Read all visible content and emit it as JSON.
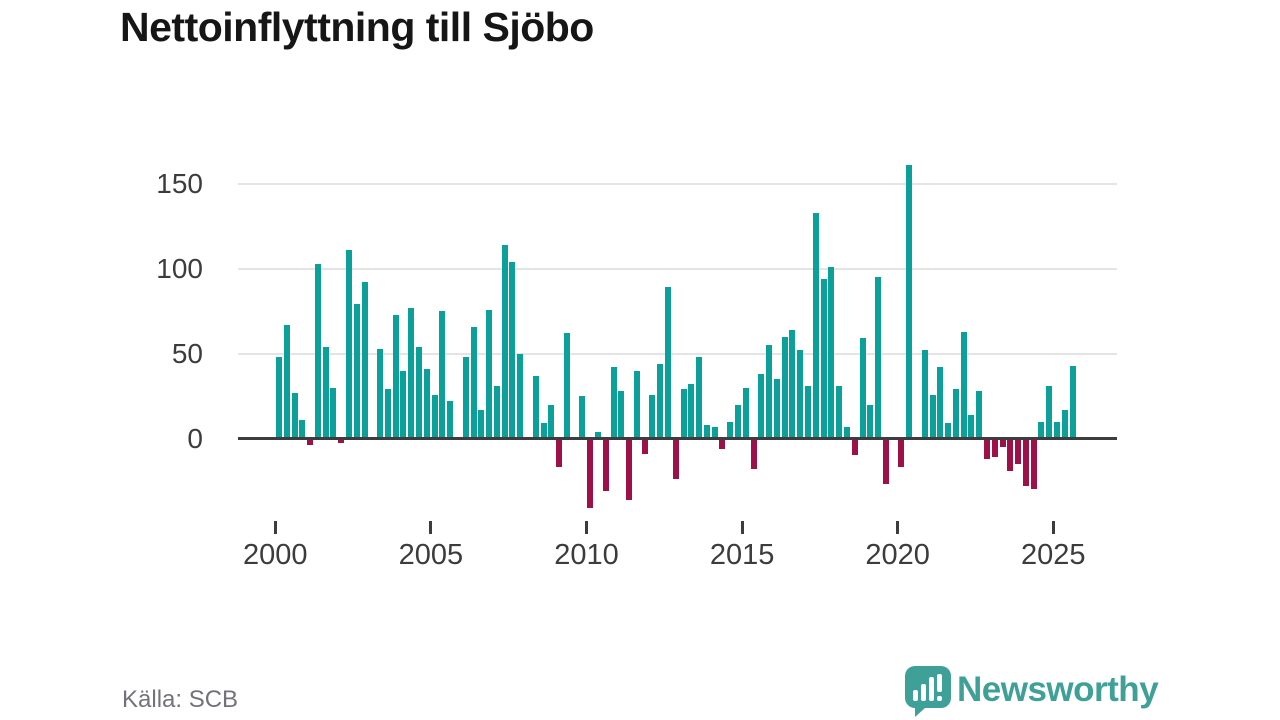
{
  "title": "Nettoinflyttning till Sjöbo",
  "source": "Källa: SCB",
  "branding": {
    "name": "Newsworthy",
    "icon": "bar-chart-speech-bubble-icon",
    "color": "#3fa098"
  },
  "colors": {
    "bar_positive": "#0ba09a",
    "bar_negative": "#9e1148",
    "gridline": "#e4e4e4",
    "axis_line": "#3d3d3d",
    "axis_text": "#3c3c3c",
    "title_text": "#161616",
    "source_text": "#72727c"
  },
  "chart_data": {
    "type": "bar",
    "title": "Nettoinflyttning till Sjöbo",
    "frequency": "quarterly",
    "x_start": "2000-Q1",
    "x_end": "2025-Q3",
    "values": [
      47,
      66,
      26,
      10,
      -3,
      102,
      53,
      29,
      -2,
      110,
      78,
      91,
      0,
      52,
      28,
      72,
      39,
      76,
      53,
      40,
      25,
      74,
      21,
      0,
      47,
      65,
      16,
      75,
      30,
      113,
      103,
      49,
      0,
      36,
      8,
      19,
      -16,
      61,
      0,
      24,
      -40,
      3,
      -30,
      41,
      27,
      -35,
      39,
      -8,
      25,
      43,
      88,
      -23,
      28,
      31,
      47,
      7,
      6,
      -5,
      9,
      19,
      29,
      -17,
      37,
      54,
      34,
      59,
      63,
      51,
      30,
      132,
      93,
      100,
      30,
      6,
      -9,
      58,
      19,
      94,
      -26,
      0,
      -16,
      160,
      0,
      51,
      25,
      41,
      8,
      28,
      62,
      13,
      27,
      -11,
      -10,
      -4,
      -18,
      -14,
      -27,
      -29,
      9,
      30,
      9,
      16,
      42
    ],
    "yticks": [
      0,
      50,
      100,
      150
    ],
    "xticks": [
      2000,
      2005,
      2010,
      2015,
      2020,
      2025
    ],
    "ylim": [
      -45,
      170
    ],
    "grid": "horizontal",
    "legend": "none",
    "positive_color": "#0ba09a",
    "negative_color": "#9e1148"
  }
}
